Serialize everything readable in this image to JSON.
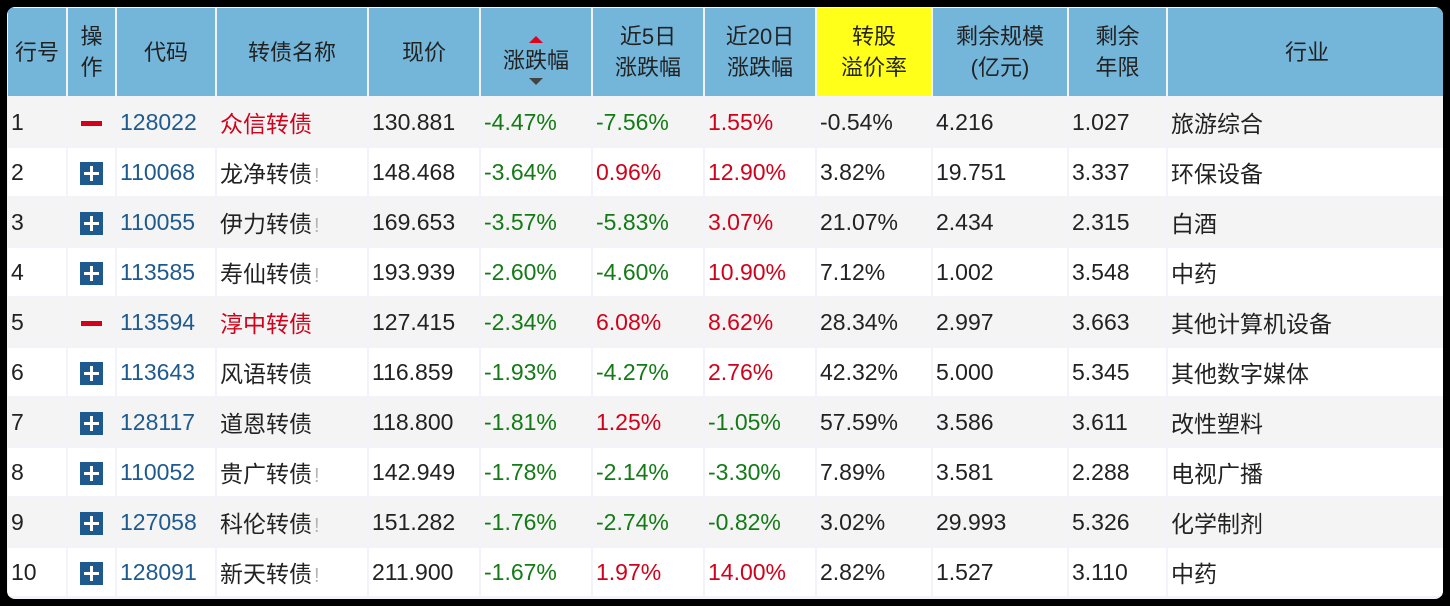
{
  "colors": {
    "header_bg": "#74b5da",
    "highlight_header_bg": "#ffff1a",
    "up": "#d0021b",
    "down": "#137a16",
    "code_link": "#1f5a8e"
  },
  "table": {
    "headers": {
      "row_no": "行号",
      "action_1": "操",
      "action_2": "作",
      "code": "代码",
      "name": "转债名称",
      "price": "现价",
      "change": "涨跌幅",
      "change_5d_1": "近5日",
      "change_5d_2": "涨跌幅",
      "change_20d_1": "近20日",
      "change_20d_2": "涨跌幅",
      "premium_1": "转股",
      "premium_2": "溢价率",
      "size_1": "剩余规模",
      "size_2": "(亿元)",
      "years_1": "剩余",
      "years_2": "年限",
      "industry": "行业"
    },
    "sort": {
      "column": "change",
      "direction": "ascending"
    },
    "rows": [
      {
        "no": "1",
        "action": "remove",
        "code": "128022",
        "name": "众信转债",
        "name_highlight": true,
        "warn": "",
        "price": "130.881",
        "change": "-4.47%",
        "change_5d": "-7.56%",
        "change_20d": "1.55%",
        "premium": "-0.54%",
        "size": "4.216",
        "years": "1.027",
        "industry": "旅游综合"
      },
      {
        "no": "2",
        "action": "add",
        "code": "110068",
        "name": "龙净转债",
        "name_highlight": false,
        "warn": "!",
        "price": "148.468",
        "change": "-3.64%",
        "change_5d": "0.96%",
        "change_20d": "12.90%",
        "premium": "3.82%",
        "size": "19.751",
        "years": "3.337",
        "industry": "环保设备"
      },
      {
        "no": "3",
        "action": "add",
        "code": "110055",
        "name": "伊力转债",
        "name_highlight": false,
        "warn": "!",
        "price": "169.653",
        "change": "-3.57%",
        "change_5d": "-5.83%",
        "change_20d": "3.07%",
        "premium": "21.07%",
        "size": "2.434",
        "years": "2.315",
        "industry": "白酒"
      },
      {
        "no": "4",
        "action": "add",
        "code": "113585",
        "name": "寿仙转债",
        "name_highlight": false,
        "warn": "!",
        "price": "193.939",
        "change": "-2.60%",
        "change_5d": "-4.60%",
        "change_20d": "10.90%",
        "premium": "7.12%",
        "size": "1.002",
        "years": "3.548",
        "industry": "中药"
      },
      {
        "no": "5",
        "action": "remove",
        "code": "113594",
        "name": "淳中转债",
        "name_highlight": true,
        "warn": "",
        "price": "127.415",
        "change": "-2.34%",
        "change_5d": "6.08%",
        "change_20d": "8.62%",
        "premium": "28.34%",
        "size": "2.997",
        "years": "3.663",
        "industry": "其他计算机设备"
      },
      {
        "no": "6",
        "action": "add",
        "code": "113643",
        "name": "风语转债",
        "name_highlight": false,
        "warn": "",
        "price": "116.859",
        "change": "-1.93%",
        "change_5d": "-4.27%",
        "change_20d": "2.76%",
        "premium": "42.32%",
        "size": "5.000",
        "years": "5.345",
        "industry": "其他数字媒体"
      },
      {
        "no": "7",
        "action": "add",
        "code": "128117",
        "name": "道恩转债",
        "name_highlight": false,
        "warn": "",
        "price": "118.800",
        "change": "-1.81%",
        "change_5d": "1.25%",
        "change_20d": "-1.05%",
        "premium": "57.59%",
        "size": "3.586",
        "years": "3.611",
        "industry": "改性塑料"
      },
      {
        "no": "8",
        "action": "add",
        "code": "110052",
        "name": "贵广转债",
        "name_highlight": false,
        "warn": "!",
        "price": "142.949",
        "change": "-1.78%",
        "change_5d": "-2.14%",
        "change_20d": "-3.30%",
        "premium": "7.89%",
        "size": "3.581",
        "years": "2.288",
        "industry": "电视广播"
      },
      {
        "no": "9",
        "action": "add",
        "code": "127058",
        "name": "科伦转债",
        "name_highlight": false,
        "warn": "!",
        "price": "151.282",
        "change": "-1.76%",
        "change_5d": "-2.74%",
        "change_20d": "-0.82%",
        "premium": "3.02%",
        "size": "29.993",
        "years": "5.326",
        "industry": "化学制剂"
      },
      {
        "no": "10",
        "action": "add",
        "code": "128091",
        "name": "新天转债",
        "name_highlight": false,
        "warn": "!",
        "price": "211.900",
        "change": "-1.67%",
        "change_5d": "1.97%",
        "change_20d": "14.00%",
        "premium": "2.82%",
        "size": "1.527",
        "years": "3.110",
        "industry": "中药"
      }
    ]
  }
}
